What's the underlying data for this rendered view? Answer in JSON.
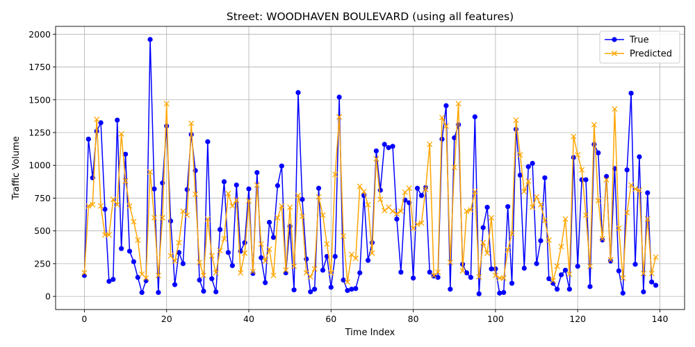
{
  "chart_data": {
    "type": "line",
    "title": "Street: WOODHAVEN BOULEVARD (using all features)",
    "xlabel": "Time Index",
    "ylabel": "Traffic Volume",
    "xlim": [
      -7,
      146
    ],
    "ylim": [
      -100,
      2060
    ],
    "xticks": [
      0,
      20,
      40,
      60,
      80,
      100,
      120,
      140
    ],
    "yticks": [
      0,
      250,
      500,
      750,
      1000,
      1250,
      1500,
      1750,
      2000
    ],
    "grid": true,
    "legend_position": "top-right",
    "series": [
      {
        "name": "True",
        "color": "#0000ff",
        "marker": "circle",
        "values": [
          160,
          1200,
          905,
          1260,
          1325,
          665,
          115,
          130,
          1345,
          365,
          1085,
          345,
          265,
          145,
          30,
          120,
          1960,
          820,
          30,
          865,
          1300,
          575,
          90,
          335,
          250,
          815,
          1235,
          960,
          125,
          40,
          1180,
          135,
          35,
          510,
          875,
          335,
          235,
          850,
          345,
          410,
          820,
          175,
          945,
          295,
          105,
          565,
          450,
          845,
          995,
          180,
          535,
          50,
          1555,
          740,
          285,
          35,
          55,
          825,
          200,
          305,
          70,
          305,
          1520,
          125,
          45,
          55,
          60,
          180,
          770,
          275,
          410,
          1110,
          810,
          1160,
          1135,
          1145,
          590,
          185,
          735,
          715,
          140,
          825,
          770,
          830,
          185,
          155,
          145,
          1200,
          1455,
          55,
          1210,
          1310,
          245,
          180,
          145,
          1370,
          20,
          525,
          680,
          210,
          210,
          25,
          30,
          685,
          100,
          1275,
          925,
          215,
          990,
          1015,
          250,
          425,
          905,
          135,
          100,
          55,
          165,
          200,
          55,
          1060,
          230,
          890,
          890,
          75,
          1160,
          1095,
          430,
          915,
          270,
          975,
          195,
          25,
          965,
          1550,
          245,
          1065,
          35,
          790,
          110,
          85
        ]
      },
      {
        "name": "Predicted",
        "color": "#ffa500",
        "marker": "x",
        "values": [
          180,
          690,
          700,
          1350,
          690,
          470,
          470,
          740,
          700,
          1240,
          880,
          690,
          570,
          430,
          170,
          140,
          950,
          600,
          160,
          600,
          1470,
          310,
          270,
          410,
          650,
          620,
          1320,
          780,
          260,
          160,
          590,
          310,
          180,
          350,
          440,
          785,
          690,
          735,
          180,
          330,
          730,
          190,
          850,
          400,
          270,
          360,
          160,
          600,
          690,
          200,
          680,
          230,
          770,
          610,
          180,
          150,
          210,
          760,
          620,
          400,
          180,
          930,
          1370,
          460,
          110,
          320,
          290,
          840,
          800,
          700,
          330,
          1050,
          740,
          655,
          680,
          650,
          630,
          650,
          795,
          825,
          520,
          550,
          560,
          815,
          1160,
          160,
          185,
          1365,
          1300,
          260,
          985,
          1470,
          195,
          650,
          660,
          800,
          150,
          410,
          330,
          600,
          160,
          140,
          140,
          355,
          480,
          1345,
          1080,
          800,
          880,
          680,
          760,
          700,
          580,
          430,
          120,
          230,
          380,
          590,
          170,
          1220,
          1080,
          965,
          620,
          230,
          1310,
          730,
          440,
          890,
          280,
          1430,
          520,
          140,
          640,
          850,
          820,
          810,
          175,
          590,
          175,
          300
        ]
      }
    ]
  }
}
